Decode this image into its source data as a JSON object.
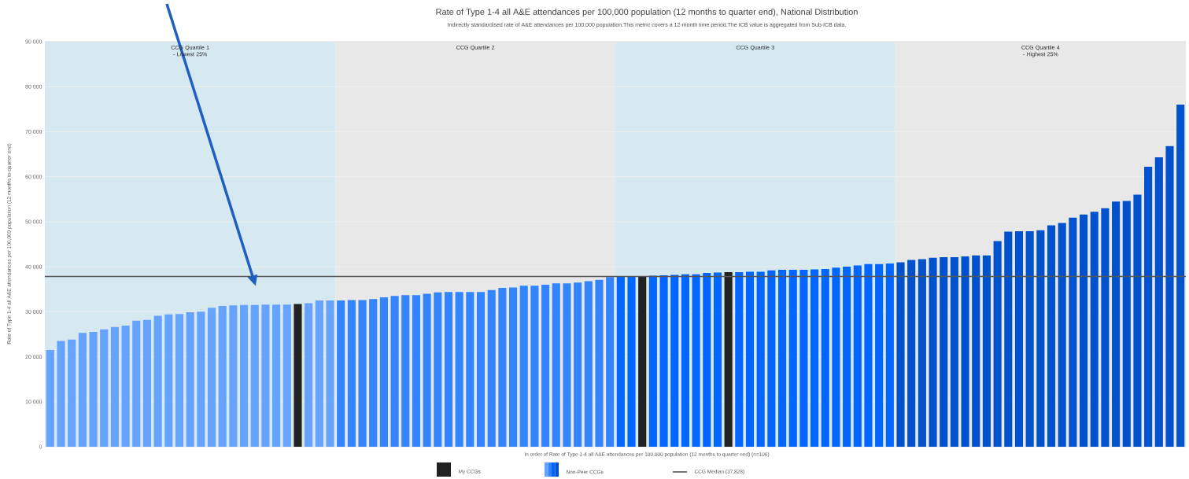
{
  "chart_data": {
    "type": "bar",
    "title": "Rate of Type 1-4 all A&E attendances per 100,000 population (12 months to quarter end), National Distribution",
    "subtitle": "Indirectly standardised rate of A&E attendances per 100,000 population.This metric covers a 12-month time period.The ICB value is aggregated from Sub-ICB data.",
    "xlabel": "In order of Rate of Type 1-4 all A&E attendances per 100,000 population (12 months to quarter end) (n=106)",
    "ylabel": "Rate of Type 1-4 all A&E attendances per 100,000 population (12 months to quarter end)",
    "categories": [
      null,
      null,
      null,
      null,
      null,
      null,
      null,
      null,
      null,
      null,
      null,
      null,
      null,
      null,
      null,
      null,
      null,
      null,
      null,
      null,
      null,
      null,
      null,
      null,
      null,
      null,
      null,
      null,
      null,
      null,
      null,
      null,
      null,
      null,
      null,
      null,
      null,
      null,
      null,
      null,
      null,
      null,
      null,
      null,
      null,
      null,
      null,
      null,
      null,
      null,
      null,
      null,
      null,
      null,
      null,
      null,
      null,
      null,
      null,
      null,
      null,
      null,
      null,
      null,
      null,
      null,
      null,
      null,
      null,
      null,
      null,
      null,
      null,
      null,
      null,
      null,
      null,
      null,
      null,
      null,
      null,
      null,
      null,
      null,
      null,
      null,
      null,
      null,
      null,
      null,
      null,
      null,
      null,
      null,
      null,
      null,
      null,
      null,
      null,
      null,
      null,
      null,
      null,
      null,
      null,
      null
    ],
    "ylim": [
      0,
      90000
    ],
    "yticks": [
      {
        "value": 0,
        "label": "0"
      },
      {
        "value": 10000,
        "label": "10 000"
      },
      {
        "value": 20000,
        "label": "20 000"
      },
      {
        "value": 30000,
        "label": "30 000"
      },
      {
        "value": 40000,
        "label": "40 000"
      },
      {
        "value": 50000,
        "label": "50 000"
      },
      {
        "value": 60000,
        "label": "60 000"
      },
      {
        "value": 70000,
        "label": "70 000"
      },
      {
        "value": 80000,
        "label": "80 000"
      },
      {
        "value": 90000,
        "label": "90 000"
      }
    ],
    "grid": "y",
    "values": [
      21500,
      23500,
      23800,
      25300,
      25500,
      26100,
      26600,
      26900,
      28000,
      28200,
      29100,
      29400,
      29500,
      29900,
      30000,
      30900,
      31300,
      31400,
      31500,
      31500,
      31600,
      31600,
      31600,
      31700,
      31900,
      32500,
      32500,
      32500,
      32600,
      32600,
      32800,
      33200,
      33500,
      33700,
      33700,
      34000,
      34300,
      34400,
      34400,
      34400,
      34400,
      34800,
      35300,
      35400,
      35800,
      35800,
      36000,
      36300,
      36300,
      36500,
      36800,
      37100,
      37700,
      37800,
      37800,
      37800,
      38000,
      38100,
      38200,
      38300,
      38300,
      38600,
      38700,
      38800,
      38800,
      38900,
      38900,
      39200,
      39300,
      39300,
      39300,
      39400,
      39500,
      39800,
      40000,
      40300,
      40600,
      40600,
      40700,
      41000,
      41500,
      41700,
      42000,
      42100,
      42100,
      42300,
      42500,
      42500,
      45700,
      47800,
      47900,
      47900,
      48100,
      49200,
      49700,
      50900,
      51600,
      52200,
      53000,
      54500,
      54600,
      56000,
      62200,
      64300,
      66800,
      76000
    ],
    "colors": [
      "#66a3ff",
      "#66a3ff",
      "#66a3ff",
      "#66a3ff",
      "#66a3ff",
      "#66a3ff",
      "#66a3ff",
      "#66a3ff",
      "#66a3ff",
      "#66a3ff",
      "#66a3ff",
      "#66a3ff",
      "#66a3ff",
      "#66a3ff",
      "#66a3ff",
      "#66a3ff",
      "#66a3ff",
      "#66a3ff",
      "#66a3ff",
      "#66a3ff",
      "#66a3ff",
      "#66a3ff",
      "#66a3ff",
      "#222222",
      "#66a3ff",
      "#66a3ff",
      "#66a3ff",
      "#3385ff",
      "#3385ff",
      "#3385ff",
      "#3385ff",
      "#3385ff",
      "#3385ff",
      "#3385ff",
      "#3385ff",
      "#3385ff",
      "#3385ff",
      "#3385ff",
      "#3385ff",
      "#3385ff",
      "#3385ff",
      "#3385ff",
      "#3385ff",
      "#3385ff",
      "#3385ff",
      "#3385ff",
      "#3385ff",
      "#3385ff",
      "#3385ff",
      "#3385ff",
      "#3385ff",
      "#3385ff",
      "#3385ff",
      "#0066ff",
      "#0066ff",
      "#222222",
      "#0066ff",
      "#0066ff",
      "#0066ff",
      "#0066ff",
      "#0066ff",
      "#0066ff",
      "#0066ff",
      "#222222",
      "#0066ff",
      "#0066ff",
      "#0066ff",
      "#0066ff",
      "#0066ff",
      "#0066ff",
      "#0066ff",
      "#0066ff",
      "#0066ff",
      "#0066ff",
      "#0066ff",
      "#0066ff",
      "#0066ff",
      "#0066ff",
      "#0066ff",
      "#0052cc",
      "#0052cc",
      "#0052cc",
      "#0052cc",
      "#0052cc",
      "#0052cc",
      "#0052cc",
      "#0052cc",
      "#0052cc",
      "#0052cc",
      "#0052cc",
      "#0052cc",
      "#0052cc",
      "#0052cc",
      "#0052cc",
      "#0052cc",
      "#0052cc",
      "#0052cc",
      "#0052cc",
      "#0052cc",
      "#0052cc",
      "#0052cc",
      "#0052cc",
      "#0052cc",
      "#0052cc",
      "#0052cc",
      "#0052cc"
    ],
    "annotations": [
      "My CCGs",
      "Non-Peer CCGs",
      "CCG Quartile 1 - Lowest 25%",
      "CCG Quartile 2",
      "CCG Quartile 3",
      "CCG Quartile 4 - Highest 25%"
    ],
    "ref_lines": [
      {
        "axis": "y",
        "value": 37828,
        "label": "CCG Median (37,828)",
        "color": "#555555"
      }
    ]
  }
}
